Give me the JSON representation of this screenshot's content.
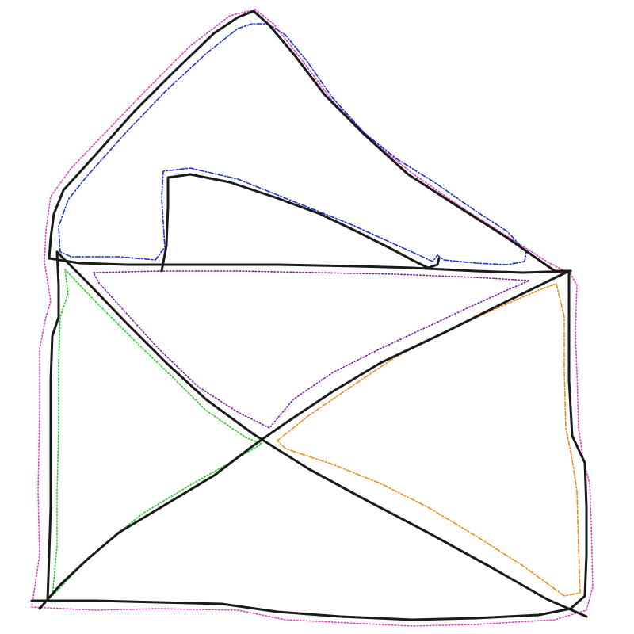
{
  "canvas": {
    "background": "#ffffff"
  },
  "drawing": {
    "subject": "open-envelope-sketch",
    "colors": {
      "ink": "#1a1a1a",
      "outer_outline": "#e040c0",
      "flap_outline": "#1f2fd6",
      "pocket_outline": "#7a1fa8",
      "left_triangle": "#22cc22",
      "right_triangle": "#f08a1a",
      "inner_notch_outline": "#1f2fd6"
    },
    "regions": [
      "envelope-outline",
      "top-flap",
      "inner-notch",
      "envelope-body",
      "cross-diagonal-left",
      "cross-diagonal-right",
      "left-triangle",
      "right-triangle",
      "top-pocket-triangle"
    ]
  }
}
